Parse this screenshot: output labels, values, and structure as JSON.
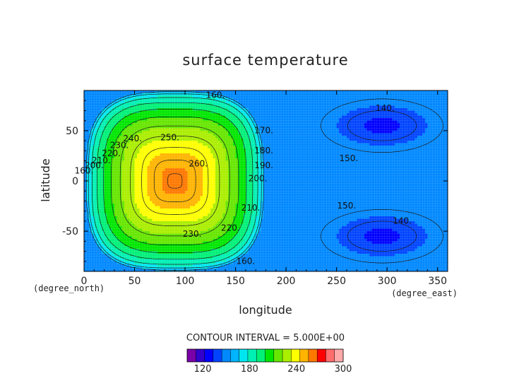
{
  "chart_data": {
    "type": "heatmap",
    "title": "surface temperature",
    "xlabel": "longitude",
    "ylabel": "latitude",
    "x_unit": "(degree_east)",
    "y_unit": "(degree_north)",
    "x_ticks": [
      0,
      50,
      100,
      150,
      200,
      250,
      300,
      350
    ],
    "y_ticks": [
      -50,
      0,
      50
    ],
    "xlim": [
      0,
      360
    ],
    "ylim": [
      -90,
      90
    ],
    "contour_interval_text": "CONTOUR INTERVAL = 5.000E+00",
    "contour_interval": 5,
    "colorbar": {
      "range": [
        100,
        300
      ],
      "tick_values": [
        120,
        180,
        240,
        300
      ],
      "colors": [
        "#7a00a8",
        "#3300cc",
        "#0000ff",
        "#0044ff",
        "#0088ff",
        "#00b4ff",
        "#00e6f0",
        "#00f0b4",
        "#00f078",
        "#00e600",
        "#66e600",
        "#aaee00",
        "#ffff00",
        "#ffb400",
        "#ff7800",
        "#ff0000",
        "#ff6e6e",
        "#ffaaaa"
      ]
    },
    "field": {
      "description_levels": [
        140,
        150,
        160,
        170,
        180,
        190,
        200,
        210,
        220,
        230,
        240,
        250,
        260
      ],
      "warm_center": {
        "lon": 90,
        "lat": 0,
        "value": 265
      },
      "cold_centers": [
        {
          "lon": 295,
          "lat": 55,
          "value": 130
        },
        {
          "lon": 295,
          "lat": -55,
          "value": 130
        }
      ],
      "background_value": 155
    },
    "contour_labels": [
      {
        "text": "160.",
        "lon": 130,
        "lat": 85
      },
      {
        "text": "250.",
        "lon": 85,
        "lat": 43
      },
      {
        "text": "240.",
        "lon": 48,
        "lat": 42
      },
      {
        "text": "230.",
        "lon": 35,
        "lat": 35
      },
      {
        "text": "220.",
        "lon": 27,
        "lat": 27
      },
      {
        "text": "210.",
        "lon": 17,
        "lat": 20
      },
      {
        "text": "200.",
        "lon": 10,
        "lat": 15
      },
      {
        "text": "160.",
        "lon": 0,
        "lat": 10
      },
      {
        "text": "260.",
        "lon": 113,
        "lat": 17
      },
      {
        "text": "230.",
        "lon": 107,
        "lat": -53
      },
      {
        "text": "220.",
        "lon": 145,
        "lat": -47
      },
      {
        "text": "210.",
        "lon": 165,
        "lat": -27
      },
      {
        "text": "160.",
        "lon": 160,
        "lat": -80
      },
      {
        "text": "170.",
        "lon": 178,
        "lat": 50
      },
      {
        "text": "180.",
        "lon": 178,
        "lat": 30
      },
      {
        "text": "190.",
        "lon": 178,
        "lat": 15
      },
      {
        "text": "200.",
        "lon": 172,
        "lat": 2
      },
      {
        "text": "140.",
        "lon": 298,
        "lat": 72
      },
      {
        "text": "150.",
        "lon": 262,
        "lat": 22
      },
      {
        "text": "150.",
        "lon": 260,
        "lat": -25
      },
      {
        "text": "140.",
        "lon": 315,
        "lat": -40
      }
    ]
  }
}
